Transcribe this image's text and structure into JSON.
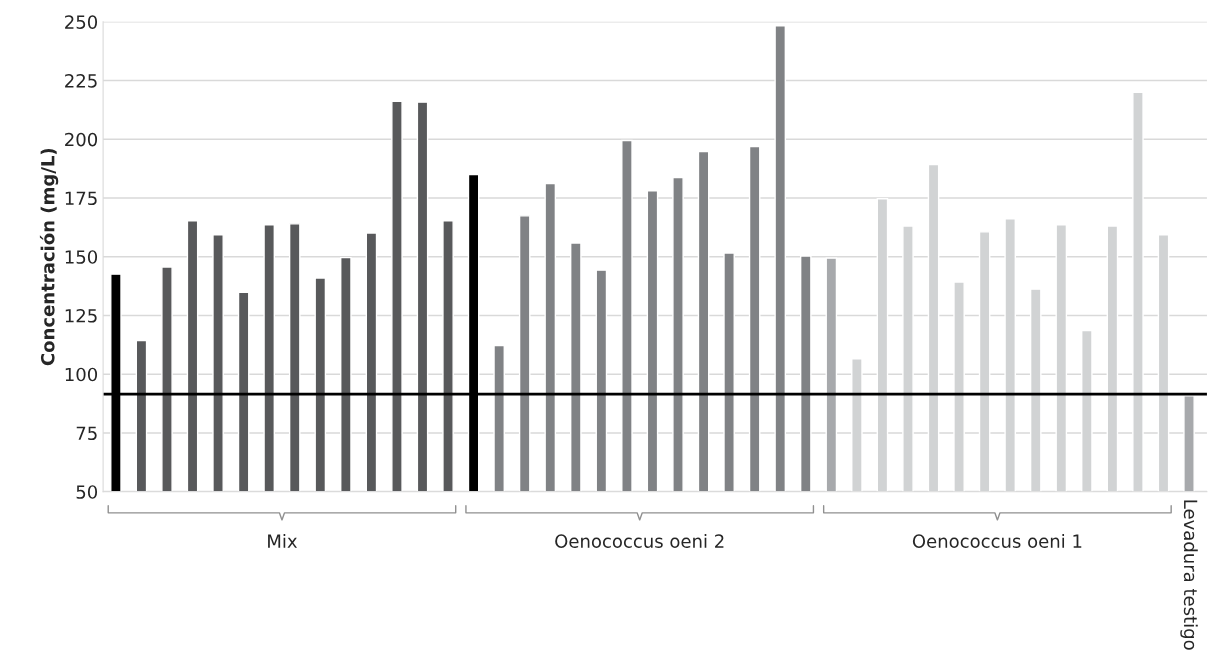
{
  "chart_data": {
    "type": "bar",
    "ylabel": "Concentración (mg/L)",
    "categories": [
      null,
      null,
      null,
      null,
      null,
      null,
      null,
      null,
      null,
      null,
      null,
      null,
      null,
      null,
      null,
      null,
      null,
      null,
      null,
      null,
      null,
      null,
      null,
      null,
      null,
      null,
      null,
      null,
      null,
      null,
      null,
      null,
      null,
      null,
      null,
      null,
      null,
      null,
      null,
      null,
      null,
      null,
      null
    ],
    "series": [
      {
        "name": "Mix",
        "colors": [
          "#000000",
          "#58595b",
          "#58595b",
          "#58595b",
          "#58595b",
          "#58595b",
          "#58595b",
          "#58595b",
          "#58595b",
          "#58595b",
          "#58595b",
          "#58595b",
          "#58595b",
          "#58595b",
          null,
          null,
          null,
          null,
          null,
          null,
          null,
          null,
          null,
          null,
          null,
          null,
          null,
          null,
          null,
          null,
          null,
          null,
          null,
          null,
          null,
          null,
          null,
          null,
          null,
          null,
          null,
          null,
          null
        ],
        "values": [
          142.6,
          114.3,
          145.6,
          165.3,
          159.3,
          134.9,
          163.6,
          164.0,
          140.9,
          149.6,
          160.1,
          216.2,
          215.8,
          165.3,
          null,
          null,
          null,
          null,
          null,
          null,
          null,
          null,
          null,
          null,
          null,
          null,
          null,
          null,
          null,
          null,
          null,
          null,
          null,
          null,
          null,
          null,
          null,
          null,
          null,
          null,
          null,
          null,
          null
        ]
      },
      {
        "name": "Oenococcus oeni 2",
        "colors": [
          null,
          null,
          null,
          null,
          null,
          null,
          null,
          null,
          null,
          null,
          null,
          null,
          null,
          null,
          "#000000",
          "#808285",
          "#808285",
          "#808285",
          "#808285",
          "#808285",
          "#808285",
          "#808285",
          "#808285",
          "#808285",
          "#808285",
          "#808285",
          "#808285",
          "#808285",
          null,
          null,
          null,
          null,
          null,
          null,
          null,
          null,
          null,
          null,
          null,
          null,
          null,
          null,
          null
        ],
        "values": [
          null,
          null,
          null,
          null,
          null,
          null,
          null,
          null,
          null,
          null,
          null,
          null,
          null,
          null,
          185.0,
          112.2,
          167.4,
          181.1,
          155.8,
          144.3,
          199.5,
          178.1,
          183.7,
          194.8,
          151.6,
          196.9,
          248.3,
          150.3,
          null,
          null,
          null,
          null,
          null,
          null,
          null,
          null,
          null,
          null,
          null,
          null,
          null,
          null,
          null
        ]
      },
      {
        "name": "Oenococcus oeni 1",
        "colors": [
          null,
          null,
          null,
          null,
          null,
          null,
          null,
          null,
          null,
          null,
          null,
          null,
          null,
          null,
          null,
          null,
          null,
          null,
          null,
          null,
          null,
          null,
          null,
          null,
          null,
          null,
          null,
          null,
          "#a7a9ac",
          "#d1d3d4",
          "#d1d3d4",
          "#d1d3d4",
          "#d1d3d4",
          "#d1d3d4",
          "#d1d3d4",
          "#d1d3d4",
          "#d1d3d4",
          "#d1d3d4",
          "#d1d3d4",
          "#d1d3d4",
          "#d1d3d4",
          "#d1d3d4",
          null
        ],
        "values": [
          null,
          null,
          null,
          null,
          null,
          null,
          null,
          null,
          null,
          null,
          null,
          null,
          null,
          null,
          null,
          null,
          null,
          null,
          null,
          null,
          null,
          null,
          null,
          null,
          null,
          null,
          null,
          null,
          149.4,
          106.6,
          174.7,
          163.1,
          189.2,
          139.2,
          160.6,
          166.1,
          136.2,
          163.6,
          118.6,
          163.1,
          220.0,
          159.3,
          null
        ]
      },
      {
        "name": "Levadura testigo",
        "colors": [
          null,
          null,
          null,
          null,
          null,
          null,
          null,
          null,
          null,
          null,
          null,
          null,
          null,
          null,
          null,
          null,
          null,
          null,
          null,
          null,
          null,
          null,
          null,
          null,
          null,
          null,
          null,
          null,
          null,
          null,
          null,
          null,
          null,
          null,
          null,
          null,
          null,
          null,
          null,
          null,
          null,
          null,
          "#a7a9ac"
        ],
        "values": [
          null,
          null,
          null,
          null,
          null,
          null,
          null,
          null,
          null,
          null,
          null,
          null,
          null,
          null,
          null,
          null,
          null,
          null,
          null,
          null,
          null,
          null,
          null,
          null,
          null,
          null,
          null,
          null,
          null,
          null,
          null,
          null,
          null,
          null,
          null,
          null,
          null,
          null,
          null,
          null,
          null,
          null,
          90.8
        ]
      }
    ],
    "ylim": [
      50,
      250
    ],
    "yticks": [
      50,
      75,
      100,
      125,
      150,
      175,
      200,
      225,
      250
    ],
    "grid": "y",
    "ref_lines": [
      {
        "axis": "y",
        "value": 91.5,
        "color": "#000000"
      }
    ]
  }
}
